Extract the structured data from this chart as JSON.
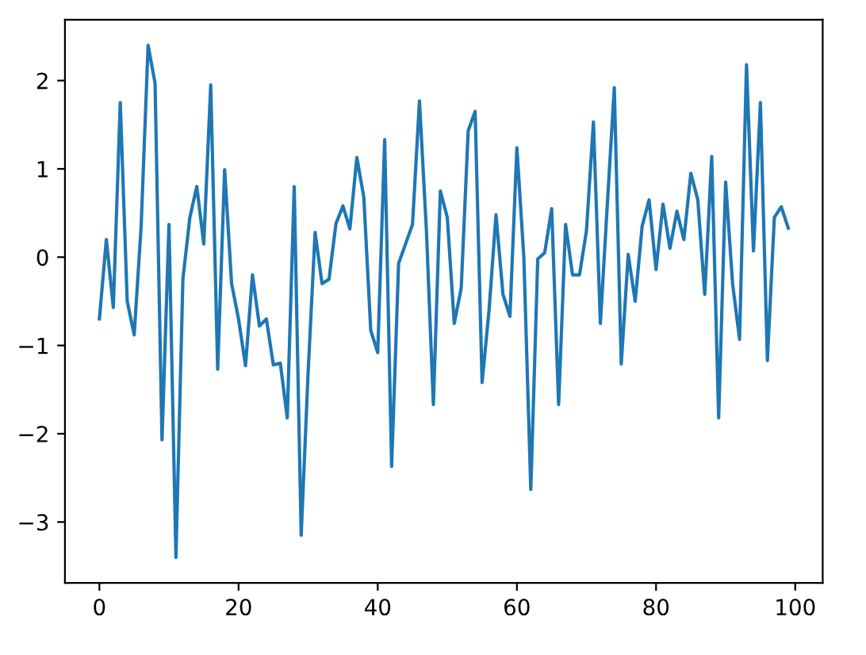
{
  "chart_data": {
    "type": "line",
    "x": [
      0,
      1,
      2,
      3,
      4,
      5,
      6,
      7,
      8,
      9,
      10,
      11,
      12,
      13,
      14,
      15,
      16,
      17,
      18,
      19,
      20,
      21,
      22,
      23,
      24,
      25,
      26,
      27,
      28,
      29,
      30,
      31,
      32,
      33,
      34,
      35,
      36,
      37,
      38,
      39,
      40,
      41,
      42,
      43,
      44,
      45,
      46,
      47,
      48,
      49,
      50,
      51,
      52,
      53,
      54,
      55,
      56,
      57,
      58,
      59,
      60,
      61,
      62,
      63,
      64,
      65,
      66,
      67,
      68,
      69,
      70,
      71,
      72,
      73,
      74,
      75,
      76,
      77,
      78,
      79,
      80,
      81,
      82,
      83,
      84,
      85,
      86,
      87,
      88,
      89,
      90,
      91,
      92,
      93,
      94,
      95,
      96,
      97,
      98,
      99
    ],
    "series": [
      {
        "color": "#1f77b4",
        "values": [
          -0.7,
          0.2,
          -0.57,
          1.75,
          -0.5,
          -0.88,
          0.35,
          2.4,
          1.97,
          -2.07,
          0.37,
          -3.4,
          -0.25,
          0.45,
          0.8,
          0.15,
          1.95,
          -1.27,
          0.99,
          -0.3,
          -0.7,
          -1.23,
          -0.2,
          -0.78,
          -0.7,
          -1.22,
          -1.2,
          -1.82,
          0.8,
          -3.15,
          -1.3,
          0.28,
          -0.3,
          -0.25,
          0.38,
          0.58,
          0.32,
          1.13,
          0.68,
          -0.83,
          -1.08,
          1.33,
          -2.37,
          -0.07,
          0.15,
          0.37,
          1.77,
          0.3,
          -1.67,
          0.75,
          0.45,
          -0.75,
          -0.35,
          1.43,
          1.65,
          -1.42,
          -0.6,
          0.48,
          -0.42,
          -0.67,
          1.24,
          0.0,
          -2.63,
          -0.02,
          0.05,
          0.55,
          -1.67,
          0.37,
          -0.2,
          -0.2,
          0.3,
          1.53,
          -0.75,
          0.6,
          1.92,
          -1.21,
          0.03,
          -0.5,
          0.35,
          0.65,
          -0.14,
          0.6,
          0.1,
          0.52,
          0.2,
          0.95,
          0.65,
          -0.42,
          1.14,
          -1.82,
          0.85,
          -0.3,
          -0.93,
          2.18,
          0.07,
          1.75,
          -1.17,
          0.45,
          0.57,
          0.33
        ]
      }
    ],
    "xlim": [
      -4.95,
      103.95
    ],
    "ylim": [
      -3.69,
      2.69
    ],
    "xticks": [
      0,
      20,
      40,
      60,
      80,
      100
    ],
    "yticks": [
      -3,
      -2,
      -1,
      0,
      1,
      2
    ],
    "grid": false,
    "marker": "none",
    "line_style": "solid"
  }
}
